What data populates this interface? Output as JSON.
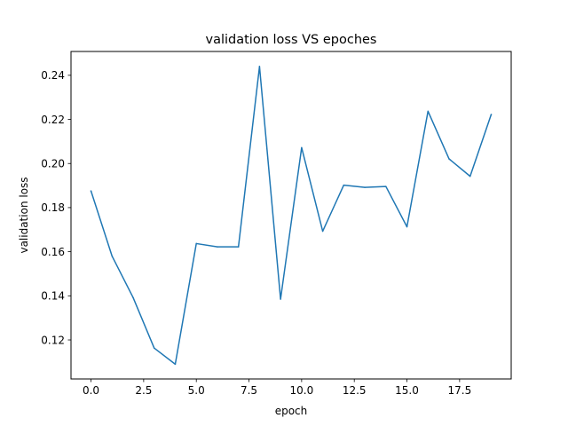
{
  "chart_data": {
    "type": "line",
    "title": "validation loss VS epoches",
    "xlabel": "epoch",
    "ylabel": "validation loss",
    "xlim": [
      -0.95,
      19.95
    ],
    "ylim": [
      0.1023,
      0.2508
    ],
    "xticks": [
      0.0,
      2.5,
      5.0,
      7.5,
      10.0,
      12.5,
      15.0,
      17.5
    ],
    "xtick_labels": [
      "0.0",
      "2.5",
      "5.0",
      "7.5",
      "10.0",
      "12.5",
      "15.0",
      "17.5"
    ],
    "yticks": [
      0.12,
      0.14,
      0.16,
      0.18,
      0.2,
      0.22,
      0.24
    ],
    "ytick_labels": [
      "0.12",
      "0.14",
      "0.16",
      "0.18",
      "0.20",
      "0.22",
      "0.24"
    ],
    "grid": false,
    "series": [
      {
        "color": "#1f77b4",
        "x": [
          0,
          1,
          2,
          3,
          4,
          5,
          6,
          7,
          8,
          9,
          10,
          11,
          12,
          13,
          14,
          15,
          16,
          17,
          18,
          19
        ],
        "y": [
          0.1875,
          0.158,
          0.1392,
          0.1163,
          0.109,
          0.1637,
          0.1622,
          0.1622,
          0.244,
          0.1385,
          0.2072,
          0.1693,
          0.1902,
          0.1892,
          0.1896,
          0.1713,
          0.2237,
          0.2021,
          0.1942,
          0.2222
        ]
      }
    ]
  }
}
